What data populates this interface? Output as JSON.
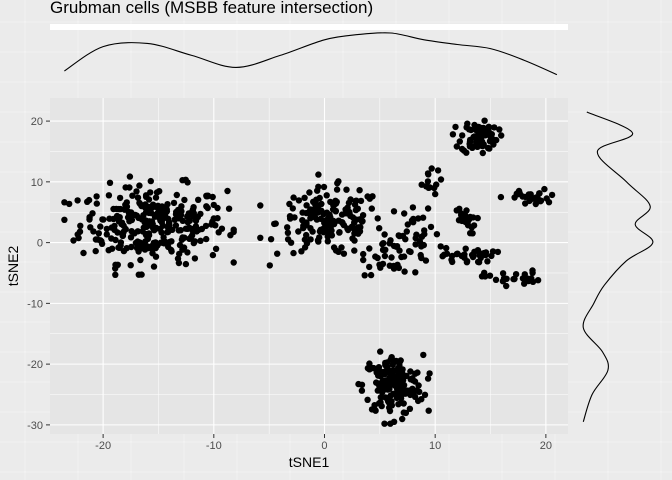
{
  "chart_data": {
    "type": "scatter",
    "title": "Grubman cells (MSBB feature intersection)",
    "xlabel": "tSNE1",
    "ylabel": "tSNE2",
    "xlim": [
      -24.8,
      22.0
    ],
    "ylim": [
      -31.5,
      23.8
    ],
    "xticks": [
      -20,
      -10,
      0,
      10,
      20
    ],
    "yticks": [
      20,
      10,
      0,
      -10,
      -20,
      -30
    ],
    "grid": true,
    "legend": "none",
    "marginal_density": {
      "x": "top",
      "y": "right"
    },
    "colors": {
      "panel": "#e5e5e5",
      "outer": "#ebebeb",
      "point": "#000000",
      "grid_major": "#ffffff"
    },
    "clusters": [
      {
        "cx": -15.5,
        "cy": 3.0,
        "sx": 4.4,
        "sy": 4.2,
        "n": 300,
        "xmin": -23.5,
        "xmax": -8.2,
        "ymin": -5.3,
        "ymax": 11.8
      },
      {
        "cx": 0.5,
        "cy": 3.3,
        "sx": 3.2,
        "sy": 3.7,
        "n": 170,
        "xmin": -5.8,
        "xmax": 7.5,
        "ymin": -6.0,
        "ymax": 11.2
      },
      {
        "cx": 6.5,
        "cy": -1.5,
        "sx": 2.3,
        "sy": 2.5,
        "n": 45,
        "xmin": 3.5,
        "xmax": 11.0,
        "ymin": -7.0,
        "ymax": 4.0
      },
      {
        "cx": 6.2,
        "cy": -23.5,
        "sx": 1.8,
        "sy": 3.3,
        "n": 160,
        "xmin": 1.0,
        "xmax": 9.5,
        "ymin": -29.8,
        "ymax": -17.2
      },
      {
        "cx": 14.0,
        "cy": 17.5,
        "sx": 1.1,
        "sy": 1.9,
        "n": 75,
        "xmin": 10.5,
        "xmax": 16.2,
        "ymin": 13.5,
        "ymax": 21.5
      },
      {
        "cx": 9.3,
        "cy": 10.0,
        "sx": 0.8,
        "sy": 1.4,
        "n": 14,
        "xmin": 8.0,
        "xmax": 10.8,
        "ymin": 7.5,
        "ymax": 12.2
      },
      {
        "cx": 12.6,
        "cy": 3.6,
        "sx": 0.7,
        "sy": 1.5,
        "n": 22,
        "xmin": 11.0,
        "xmax": 14.2,
        "ymin": 0.5,
        "ymax": 7.2
      },
      {
        "cx": 13.0,
        "cy": -2.2,
        "sx": 1.6,
        "sy": 0.9,
        "n": 32,
        "xmin": 10.3,
        "xmax": 16.2,
        "ymin": -4.3,
        "ymax": -0.2
      },
      {
        "cx": 17.0,
        "cy": -5.8,
        "sx": 1.7,
        "sy": 0.8,
        "n": 24,
        "xmin": 14.2,
        "xmax": 19.3,
        "ymin": -8.5,
        "ymax": -3.6
      },
      {
        "cx": 18.8,
        "cy": 7.4,
        "sx": 1.7,
        "sy": 0.9,
        "n": 28,
        "xmin": 15.8,
        "xmax": 21.2,
        "ymin": 5.5,
        "ymax": 8.8
      },
      {
        "cx": 8.6,
        "cy": 1.5,
        "sx": 1.2,
        "sy": 3.0,
        "n": 18,
        "xmin": 7.2,
        "xmax": 10.5,
        "ymin": -3.0,
        "ymax": 6.0
      }
    ],
    "density_x": [
      [
        -23.5,
        0.25
      ],
      [
        -20,
        0.72
      ],
      [
        -16,
        0.78
      ],
      [
        -12,
        0.55
      ],
      [
        -8,
        0.32
      ],
      [
        -4,
        0.55
      ],
      [
        0,
        0.85
      ],
      [
        3,
        0.95
      ],
      [
        6,
        0.98
      ],
      [
        9,
        0.85
      ],
      [
        12,
        0.76
      ],
      [
        15,
        0.68
      ],
      [
        18,
        0.46
      ],
      [
        21,
        0.18
      ]
    ],
    "density_y": [
      [
        21.5,
        0.1
      ],
      [
        18,
        0.62
      ],
      [
        15,
        0.22
      ],
      [
        10,
        0.55
      ],
      [
        6,
        0.82
      ],
      [
        3,
        0.65
      ],
      [
        0,
        0.85
      ],
      [
        -3,
        0.55
      ],
      [
        -7,
        0.3
      ],
      [
        -10,
        0.18
      ],
      [
        -14,
        0.06
      ],
      [
        -18,
        0.28
      ],
      [
        -21,
        0.34
      ],
      [
        -25,
        0.16
      ],
      [
        -29.5,
        0.06
      ]
    ]
  }
}
